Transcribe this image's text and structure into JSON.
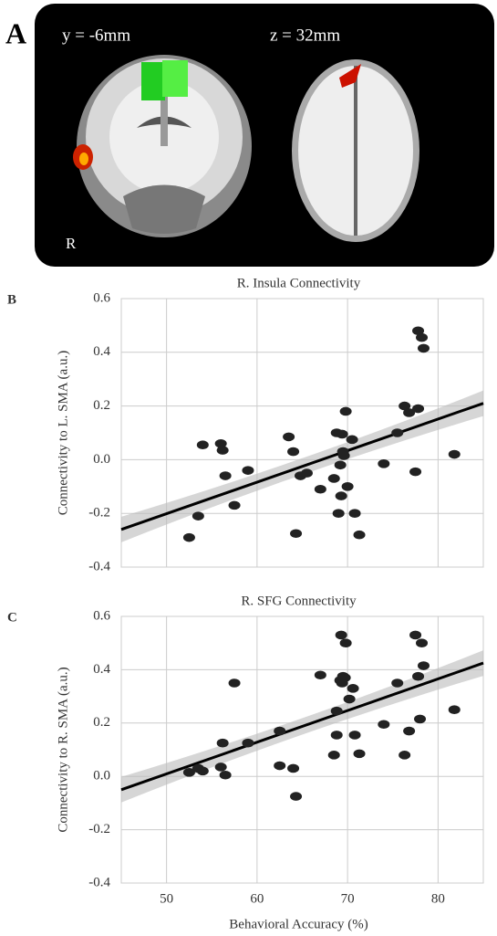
{
  "panel_a": {
    "letter": "A",
    "coronal_label": "y = -6mm",
    "axial_label": "z = 32mm",
    "side_label": "R"
  },
  "chart_data": [
    {
      "type": "scatter",
      "letter": "B",
      "title": "R. Insula Connectivity",
      "ylabel": "Connectivity to L. SMA (a.u.)",
      "color": "#222222",
      "fit_color": "#000000",
      "grid": true,
      "xtick_labels": false,
      "xlim": [
        45,
        85
      ],
      "ylim": [
        -0.4,
        0.6
      ],
      "xticks": [
        50,
        60,
        70,
        80
      ],
      "yticks": [
        {
          "value": 0.6,
          "label": "0.6"
        },
        {
          "value": 0.4,
          "label": "0.4"
        },
        {
          "value": 0.2,
          "label": "0.2"
        },
        {
          "value": 0,
          "label": "0.0"
        },
        {
          "value": -0.2,
          "label": "-0.2"
        },
        {
          "value": -0.4,
          "label": "-0.4"
        }
      ],
      "x": [
        52.5,
        53.5,
        54,
        56,
        56.2,
        56.5,
        57.5,
        59,
        63.5,
        64,
        64.3,
        64.8,
        65.5,
        67,
        68.5,
        68.8,
        69,
        69.2,
        69.3,
        69.4,
        69.5,
        69.6,
        69.8,
        70,
        70.5,
        70.8,
        71.3,
        74,
        75.5,
        76.3,
        76.8,
        77.5,
        77.8,
        77.8,
        78.2,
        78.4,
        81.8
      ],
      "values": [
        -0.29,
        -0.21,
        0.055,
        0.06,
        0.035,
        -0.06,
        -0.17,
        -0.04,
        0.085,
        0.03,
        -0.275,
        -0.06,
        -0.05,
        -0.11,
        -0.07,
        0.1,
        -0.2,
        -0.02,
        -0.135,
        0.095,
        0.03,
        0.015,
        0.18,
        -0.1,
        0.075,
        -0.2,
        -0.28,
        -0.015,
        0.1,
        0.2,
        0.175,
        -0.045,
        0.19,
        0.48,
        0.455,
        0.415,
        0.02
      ],
      "fit": {
        "x": [
          45,
          85
        ],
        "y": [
          -0.26,
          0.21
        ]
      }
    },
    {
      "type": "scatter",
      "letter": "C",
      "title": "R. SFG Connectivity",
      "ylabel": "Connectivity to R. SMA (a.u.)",
      "xlabel": "Behavioral Accuracy (%)",
      "color": "#222222",
      "fit_color": "#000000",
      "grid": true,
      "xtick_labels": true,
      "xlim": [
        45,
        85
      ],
      "ylim": [
        -0.4,
        0.6
      ],
      "xticks": [
        50,
        60,
        70,
        80
      ],
      "yticks": [
        {
          "value": 0.6,
          "label": "0.6"
        },
        {
          "value": 0.4,
          "label": "0.4"
        },
        {
          "value": 0.2,
          "label": "0.2"
        },
        {
          "value": 0,
          "label": "0.0"
        },
        {
          "value": -0.2,
          "label": "-0.2"
        },
        {
          "value": -0.4,
          "label": "-0.4"
        }
      ],
      "x": [
        52.5,
        53.5,
        54,
        56,
        56.2,
        56.5,
        57.5,
        59,
        62.5,
        62.5,
        64,
        64.3,
        67,
        68.5,
        68.8,
        68.8,
        69.2,
        69.3,
        69.4,
        69.5,
        69.7,
        69.8,
        70.2,
        70.6,
        70.8,
        71.3,
        74,
        75.5,
        76.3,
        76.8,
        77.5,
        77.8,
        78,
        78.2,
        78.4,
        81.8
      ],
      "values": [
        0.015,
        0.03,
        0.02,
        0.035,
        0.125,
        0.005,
        0.35,
        0.125,
        0.17,
        0.04,
        0.03,
        -0.075,
        0.38,
        0.08,
        0.155,
        0.245,
        0.36,
        0.53,
        0.35,
        0.375,
        0.37,
        0.5,
        0.29,
        0.33,
        0.155,
        0.085,
        0.195,
        0.35,
        0.08,
        0.17,
        0.53,
        0.375,
        0.215,
        0.5,
        0.415,
        0.25
      ],
      "fit": {
        "x": [
          45,
          85
        ],
        "y": [
          -0.05,
          0.425
        ]
      }
    }
  ]
}
